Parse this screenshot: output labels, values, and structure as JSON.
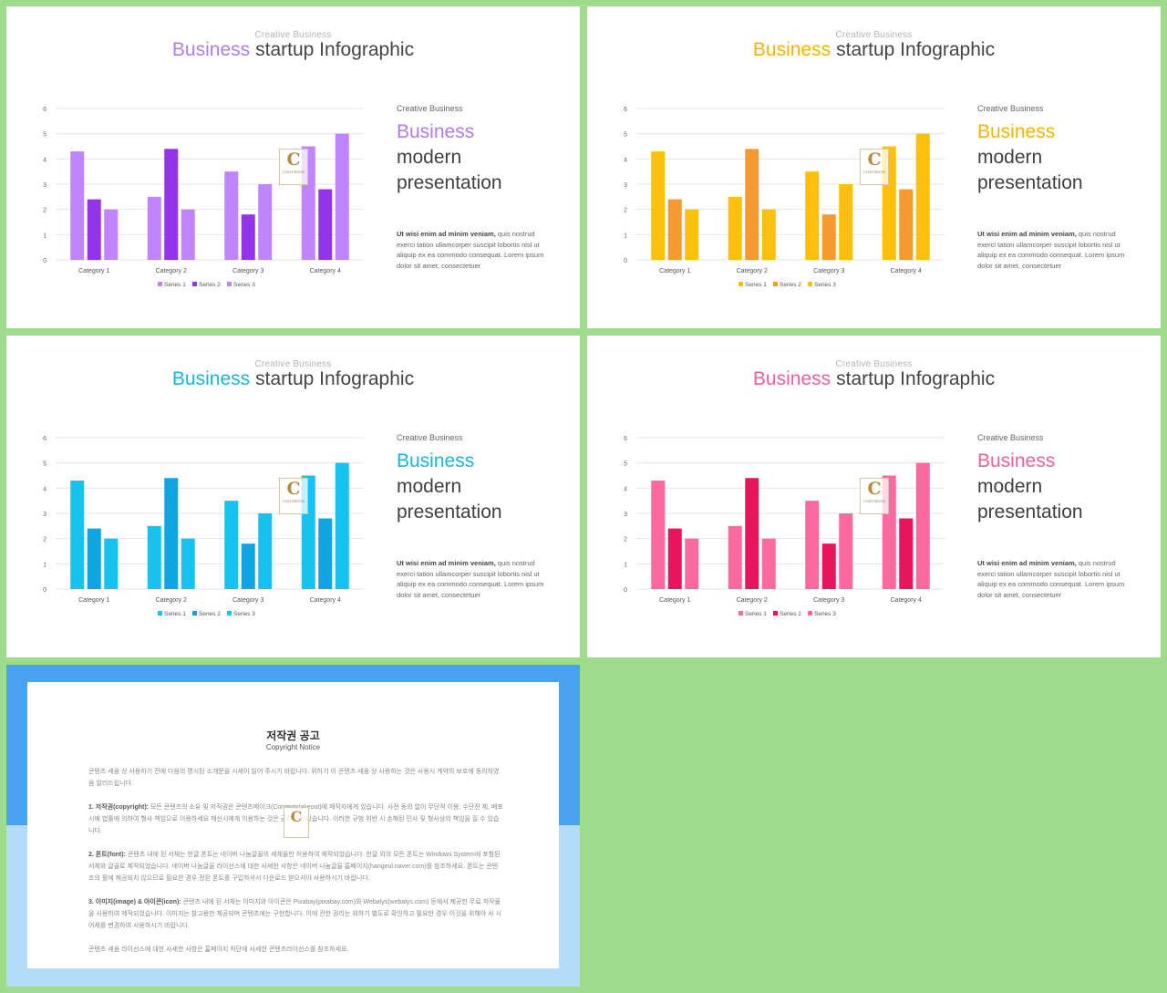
{
  "slides": [
    {
      "kicker": "Creative Business",
      "title_accent": "Business",
      "title_rest": "startup Infographic",
      "side_kicker": "Creative Business",
      "side_h1": "Business",
      "side_h2_line1": "modern",
      "side_h2_line2": "presentation",
      "body_bold": "Ut wisi enim ad minim veniam,",
      "body_rest": " quis nostrud exerci tation ullamcorper suscipit lobortis nisl ut aliquip ex ea commodo consequat. Lorem ipsum dolor sit amet, consectetuer",
      "watermark_letter": "C",
      "watermark_text": "CONTENTS",
      "colors": {
        "accent": "#b07ce8",
        "s1": "#c084fc",
        "s2": "#9333ea",
        "s3": "#c084fc"
      }
    },
    {
      "kicker": "Creative Business",
      "title_accent": "Business",
      "title_rest": "startup Infographic",
      "side_kicker": "Creative Business",
      "side_h1": "Business",
      "side_h2_line1": "modern",
      "side_h2_line2": "presentation",
      "body_bold": "Ut wisi enim ad minim veniam,",
      "body_rest": " quis nostrud exerci tation ullamcorper suscipit lobortis nisl ut aliquip ex ea commodo consequat. Lorem ipsum dolor sit amet, consectetuer",
      "watermark_letter": "C",
      "watermark_text": "CONTENTS",
      "colors": {
        "accent": "#f5b400",
        "s1": "#fbbf0e",
        "s2": "#f59a30",
        "s3": "#fbbf0e"
      }
    },
    {
      "kicker": "Creative Business",
      "title_accent": "Business",
      "title_rest": "startup Infographic",
      "side_kicker": "Creative Business",
      "side_h1": "Business",
      "side_h2_line1": "modern",
      "side_h2_line2": "presentation",
      "body_bold": "Ut wisi enim ad minim veniam,",
      "body_rest": " quis nostrud exerci tation ullamcorper suscipit lobortis nisl ut aliquip ex ea commodo consequat. Lorem ipsum dolor sit amet, consectetuer",
      "watermark_letter": "C",
      "watermark_text": "CONTENTS",
      "colors": {
        "accent": "#16b8d8",
        "s1": "#16c2ee",
        "s2": "#0ea5e0",
        "s3": "#16c2ee"
      }
    },
    {
      "kicker": "Creative Business",
      "title_accent": "Business",
      "title_rest": "startup Infographic",
      "side_kicker": "Creative Business",
      "side_h1": "Business",
      "side_h2_line1": "modern",
      "side_h2_line2": "presentation",
      "body_bold": "Ut wisi enim ad minim veniam,",
      "body_rest": " quis nostrud exerci tation ullamcorper suscipit lobortis nisl ut aliquip ex ea commodo consequat. Lorem ipsum dolor sit amet, consectetuer",
      "watermark_letter": "C",
      "watermark_text": "CONTENTS",
      "colors": {
        "accent": "#f0609a",
        "s1": "#fb6a9e",
        "s2": "#e8155c",
        "s3": "#fb6a9e"
      }
    }
  ],
  "chart_data": [
    {
      "type": "bar",
      "categories": [
        "Category 1",
        "Category 2",
        "Category 3",
        "Category 4"
      ],
      "series": [
        {
          "name": "Series 1",
          "values": [
            4.3,
            2.5,
            3.5,
            4.5
          ]
        },
        {
          "name": "Series 2",
          "values": [
            2.4,
            4.4,
            1.8,
            2.8
          ]
        },
        {
          "name": "Series 3",
          "values": [
            2,
            2,
            3,
            5
          ]
        }
      ],
      "ylim": [
        0,
        6
      ],
      "yticks": [
        "0",
        "1",
        "2",
        "3",
        "4",
        "5",
        "6"
      ],
      "grid": true,
      "legend": "bottom"
    },
    {
      "type": "bar",
      "categories": [
        "Category 1",
        "Category 2",
        "Category 3",
        "Category 4"
      ],
      "series": [
        {
          "name": "Series 1",
          "values": [
            4.3,
            2.5,
            3.5,
            4.5
          ]
        },
        {
          "name": "Series 2",
          "values": [
            2.4,
            4.4,
            1.8,
            2.8
          ]
        },
        {
          "name": "Series 3",
          "values": [
            2,
            2,
            3,
            5
          ]
        }
      ],
      "ylim": [
        0,
        6
      ],
      "yticks": [
        "0",
        "1",
        "2",
        "3",
        "4",
        "5",
        "6"
      ],
      "grid": true,
      "legend": "bottom"
    },
    {
      "type": "bar",
      "categories": [
        "Category 1",
        "Category 2",
        "Category 3",
        "Category 4"
      ],
      "series": [
        {
          "name": "Series 1",
          "values": [
            4.3,
            2.5,
            3.5,
            4.5
          ]
        },
        {
          "name": "Series 2",
          "values": [
            2.4,
            4.4,
            1.8,
            2.8
          ]
        },
        {
          "name": "Series 3",
          "values": [
            2,
            2,
            3,
            5
          ]
        }
      ],
      "ylim": [
        0,
        6
      ],
      "yticks": [
        "0",
        "1",
        "2",
        "3",
        "4",
        "5",
        "6"
      ],
      "grid": true,
      "legend": "bottom"
    },
    {
      "type": "bar",
      "categories": [
        "Category 1",
        "Category 2",
        "Category 3",
        "Category 4"
      ],
      "series": [
        {
          "name": "Series 1",
          "values": [
            4.3,
            2.5,
            3.5,
            4.5
          ]
        },
        {
          "name": "Series 2",
          "values": [
            2.4,
            4.4,
            1.8,
            2.8
          ]
        },
        {
          "name": "Series 3",
          "values": [
            2,
            2,
            3,
            5
          ]
        }
      ],
      "ylim": [
        0,
        6
      ],
      "yticks": [
        "0",
        "1",
        "2",
        "3",
        "4",
        "5",
        "6"
      ],
      "grid": true,
      "legend": "bottom"
    }
  ],
  "copyright": {
    "title": "저작권 공고",
    "subtitle": "Copyright Notice",
    "watermark_letter": "C",
    "p1": "콘텐츠 세움 상 사용하기 전에 다음의 명시된 소개문을 시세이 읽어 주시기 바랍니다. 위하기 이 콘텐츠 세움 상 사용하는 것은 사용시 계약의 보호에 동의하였음 알리드립니다.",
    "p2_bold": "1. 저작권(copyright):",
    "p2": " 모든 콘텐츠의 소유 및 저작권은 콘텐츠메이크(Contentstakeout)에 제작자에게 있습니다. 사전 동의 없이 무단적 이용, 수단전 제, 배포 시에 법률에 의하여 형사 책임으로 이용하세요 제신시에게 이용하는 것은 금지되어 있습니다. 이러한 규범 위반 시 손해된 민사 및 형사상의 책임을 질 수 있습니다.",
    "p3_bold": "2. 폰트(font):",
    "p3": " 콘텐츠 내에 된 서체는 한글 폰트는 네이버 나눔글꼴의 세체들만 허용하여 제작되었습니다. 한글 외의 모든 폰트는 Windows System에 포함된 서체와 글꼴로 제작되었습니다. 네이버 나눔글꼴 라이선스에 대한 사세한 사항은 네이버 나눔글꼴 홈페이지(hangeul.naver.com)를 참조하세요. 폰트는 콘텐츠의 활에 제공되지 않으므로 필요한 경우 정된 폰트를 구입하셔서 다운로드 받으셔야 사용하시기 바랍니다.",
    "p4_bold": "3. 이미지(image) & 아이콘(icon):",
    "p4": " 콘텐츠 내에 된 서체는 이미지와 아이콘은 Pixabay(pixabay.com)와 Webalys(webalys.com) 등에서 제공한 무료 저작물 을 사용하여 제작되었습니다. 이미지는 참고용만 제공되며 콘텐츠에는 구현합니다. 이에 관한 권리는 위하기 별도로 확인하고 필요한 경우 이것을 위해야 사 시어세를 변경하여 사용하시기 바랍니다.",
    "p5": "콘텐츠 세움 라이선스에 대한 사세한 사항은 홈페이지 하단에 사세한 콘텐츠라이선스를 참조하세요."
  }
}
